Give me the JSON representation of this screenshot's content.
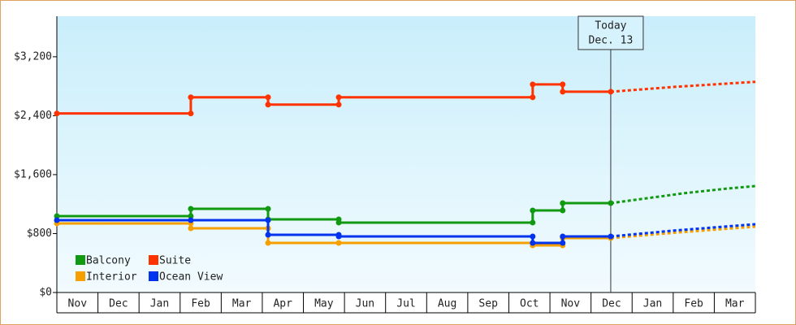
{
  "chart_data": {
    "type": "step-line",
    "xlim": [
      0,
      17
    ],
    "xticks": [
      {
        "value": 0.5,
        "label": "Nov"
      },
      {
        "value": 1.5,
        "label": "Dec"
      },
      {
        "value": 2.5,
        "label": "Jan"
      },
      {
        "value": 3.5,
        "label": "Feb"
      },
      {
        "value": 4.5,
        "label": "Mar"
      },
      {
        "value": 5.5,
        "label": "Apr"
      },
      {
        "value": 6.5,
        "label": "May"
      },
      {
        "value": 7.5,
        "label": "Jun"
      },
      {
        "value": 8.5,
        "label": "Jul"
      },
      {
        "value": 9.5,
        "label": "Aug"
      },
      {
        "value": 10.5,
        "label": "Sep"
      },
      {
        "value": 11.5,
        "label": "Oct"
      },
      {
        "value": 12.5,
        "label": "Nov"
      },
      {
        "value": 13.5,
        "label": "Dec"
      },
      {
        "value": 14.5,
        "label": "Jan"
      },
      {
        "value": 15.5,
        "label": "Feb"
      },
      {
        "value": 16.5,
        "label": "Mar"
      }
    ],
    "ylim": [
      0,
      3750
    ],
    "yticks": [
      {
        "value": 0,
        "label": "$0"
      },
      {
        "value": 800,
        "label": "$800"
      },
      {
        "value": 1600,
        "label": "$1,600"
      },
      {
        "value": 2400,
        "label": "$2,400"
      },
      {
        "value": 3200,
        "label": "$3,200"
      }
    ],
    "today": {
      "x": 13.48,
      "label_1": "Today",
      "label_2": "Dec. 13"
    },
    "legend": "lower left",
    "series": [
      {
        "name": "Balcony",
        "color": "#119911",
        "x": [
          0,
          3.26,
          3.26,
          5.14,
          5.14,
          6.86,
          6.86,
          11.58,
          11.58,
          12.31,
          12.31,
          13.48
        ],
        "values": [
          1037,
          1037,
          1136,
          1136,
          993,
          993,
          949,
          949,
          1114,
          1114,
          1213,
          1213
        ],
        "forecast_x": [
          13.48,
          14.5,
          15.3,
          16.3,
          17
        ],
        "forecast_values": [
          1213,
          1290,
          1350,
          1410,
          1445
        ]
      },
      {
        "name": "Suite",
        "color": "#ff3300",
        "x": [
          0,
          3.26,
          3.26,
          5.14,
          5.14,
          6.86,
          6.86,
          11.58,
          11.58,
          12.31,
          12.31,
          13.48
        ],
        "values": [
          2430,
          2430,
          2650,
          2650,
          2550,
          2550,
          2650,
          2650,
          2825,
          2825,
          2725,
          2725
        ],
        "forecast_x": [
          13.48,
          15,
          17
        ],
        "forecast_values": [
          2725,
          2790,
          2860
        ]
      },
      {
        "name": "Interior",
        "color": "#f5a000",
        "x": [
          0,
          3.26,
          3.26,
          5.14,
          5.14,
          6.86,
          11.58,
          11.58,
          12.31,
          12.31,
          13.48
        ],
        "values": [
          938,
          938,
          871,
          871,
          673,
          673,
          673,
          640,
          640,
          739,
          739
        ],
        "forecast_x": [
          13.48,
          15,
          17
        ],
        "forecast_values": [
          739,
          810,
          894
        ]
      },
      {
        "name": "Ocean View",
        "color": "#0033ee",
        "x": [
          0,
          3.26,
          5.14,
          5.14,
          6.86,
          6.86,
          11.58,
          11.58,
          12.31,
          12.31,
          13.48
        ],
        "values": [
          982,
          982,
          982,
          783,
          783,
          761,
          761,
          673,
          673,
          761,
          761
        ],
        "forecast_x": [
          13.48,
          15,
          17
        ],
        "forecast_values": [
          761,
          840,
          927
        ]
      }
    ]
  }
}
